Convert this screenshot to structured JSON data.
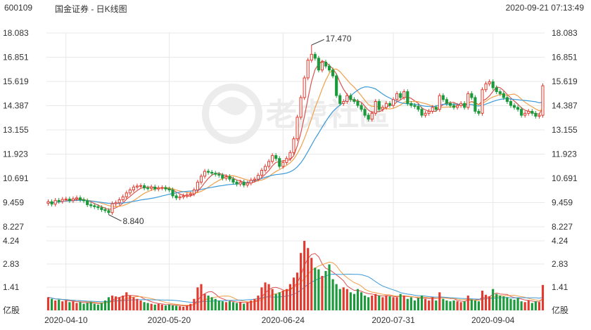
{
  "header": {
    "code": "600109",
    "name": "国金证券 - 日K线图",
    "timestamp": "2020-09-21 07:13:49"
  },
  "watermark": {
    "text": "老虎社區"
  },
  "colors": {
    "up": "#e23a2e",
    "down": "#1a9a3a",
    "ma5": "#d9534f",
    "ma10": "#f0a04b",
    "ma20": "#3a9ad9",
    "grid": "#e8e8e8"
  },
  "chart_data": {
    "type": "candlestick",
    "price_axis": {
      "ticks": [
        "18.083",
        "16.851",
        "15.619",
        "14.387",
        "13.155",
        "11.923",
        "10.691",
        "9.459",
        "8.227"
      ],
      "min": 8.227,
      "max": 18.083
    },
    "volume_axis": {
      "ticks": [
        "4.24",
        "2.83",
        "1.41",
        "亿股"
      ],
      "max": 4.24
    },
    "x_labels": [
      "2020-04-10",
      "2020-05-20",
      "2020-06-24",
      "2020-07-31",
      "2020-09-04"
    ],
    "annotations": {
      "high": "17.470",
      "low": "8.840"
    },
    "close": [
      9.5,
      9.38,
      9.57,
      9.52,
      9.62,
      9.64,
      9.56,
      9.65,
      9.7,
      9.6,
      9.55,
      9.35,
      9.3,
      9.25,
      9.2,
      9.1,
      9.05,
      8.95,
      9.4,
      9.45,
      9.6,
      9.75,
      9.95,
      10.1,
      10.25,
      10.3,
      10.32,
      10.2,
      10.18,
      10.25,
      10.15,
      10.2,
      10.22,
      10.15,
      10.1,
      9.8,
      9.7,
      9.75,
      9.8,
      9.85,
      9.9,
      10.1,
      10.5,
      10.8,
      11.05,
      11.0,
      10.95,
      10.9,
      10.85,
      10.7,
      10.78,
      10.65,
      10.5,
      10.4,
      10.5,
      10.35,
      10.45,
      10.6,
      10.65,
      10.85,
      11.1,
      11.3,
      11.55,
      11.85,
      11.7,
      11.3,
      11.5,
      11.7,
      12.0,
      12.7,
      13.8,
      14.8,
      15.8,
      16.7,
      17.0,
      16.8,
      16.2,
      16.6,
      16.4,
      16.2,
      15.9,
      14.9,
      14.5,
      14.6,
      14.9,
      14.7,
      14.6,
      14.4,
      14.2,
      13.9,
      13.7,
      14.0,
      14.6,
      14.2,
      14.3,
      14.5,
      14.4,
      14.7,
      15.0,
      14.8,
      15.1,
      14.5,
      14.4,
      14.35,
      14.2,
      13.9,
      14.0,
      14.1,
      14.3,
      14.2,
      14.9,
      14.7,
      14.5,
      14.4,
      14.3,
      14.4,
      14.5,
      14.3,
      15.0,
      14.8,
      14.1,
      14.0,
      15.2,
      15.5,
      15.6,
      15.3,
      15.1,
      15.0,
      14.8,
      14.6,
      14.4,
      14.3,
      14.2,
      13.9,
      14.0,
      14.1,
      14.0,
      13.85,
      13.9,
      15.4
    ],
    "volume": [
      0.8,
      0.7,
      0.6,
      0.65,
      0.55,
      0.6,
      0.5,
      0.55,
      0.45,
      0.5,
      0.4,
      0.45,
      0.5,
      0.4,
      0.35,
      0.45,
      0.6,
      0.8,
      0.9,
      0.85,
      0.8,
      0.9,
      1.1,
      0.9,
      0.8,
      0.7,
      0.6,
      0.5,
      0.45,
      0.4,
      0.35,
      0.4,
      0.35,
      0.3,
      0.35,
      0.3,
      0.28,
      0.25,
      0.22,
      0.3,
      0.4,
      0.7,
      1.4,
      1.6,
      1.0,
      0.9,
      0.8,
      0.7,
      0.6,
      0.55,
      0.5,
      0.55,
      0.5,
      0.45,
      0.5,
      0.4,
      0.5,
      0.6,
      0.7,
      0.9,
      1.4,
      1.7,
      1.6,
      1.3,
      1.0,
      1.1,
      1.2,
      1.3,
      1.6,
      2.0,
      2.3,
      3.5,
      4.24,
      3.8,
      3.2,
      2.6,
      2.5,
      2.1,
      2.4,
      2.8,
      1.9,
      1.6,
      1.3,
      1.4,
      1.3,
      1.1,
      1.0,
      1.3,
      1.1,
      0.9,
      0.8,
      0.9,
      1.0,
      0.9,
      0.8,
      0.9,
      0.85,
      0.8,
      0.8,
      1.0,
      0.9,
      0.7,
      0.8,
      0.6,
      0.75,
      0.9,
      0.7,
      0.6,
      0.8,
      0.6,
      1.1,
      0.7,
      0.6,
      0.55,
      0.6,
      0.55,
      0.5,
      0.55,
      0.9,
      0.65,
      0.6,
      0.55,
      1.2,
      0.95,
      0.85,
      1.3,
      1.0,
      0.9,
      0.85,
      0.8,
      0.7,
      0.65,
      0.75,
      0.55,
      0.5,
      0.6,
      0.45,
      0.55,
      0.5,
      1.55
    ]
  }
}
